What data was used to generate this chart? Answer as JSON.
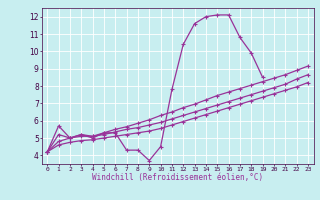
{
  "title": "",
  "xlabel": "Windchill (Refroidissement éolien,°C)",
  "ylabel": "",
  "bg_color": "#c8eef0",
  "grid_color": "#aadddd",
  "line_color": "#993399",
  "marker": "+",
  "xlim": [
    -0.5,
    23.5
  ],
  "ylim": [
    3.5,
    12.5
  ],
  "xticks": [
    0,
    1,
    2,
    3,
    4,
    5,
    6,
    7,
    8,
    9,
    10,
    11,
    12,
    13,
    14,
    15,
    16,
    17,
    18,
    19,
    20,
    21,
    22,
    23
  ],
  "yticks": [
    4,
    5,
    6,
    7,
    8,
    9,
    10,
    11,
    12
  ],
  "x_data": [
    0,
    1,
    2,
    3,
    4,
    5,
    6,
    7,
    8,
    9,
    10,
    11,
    12,
    13,
    14,
    15,
    16,
    17,
    18,
    19,
    20,
    21,
    22,
    23
  ],
  "line1_x": [
    0,
    1,
    2,
    3,
    4,
    5,
    6,
    7,
    8,
    9,
    10,
    11,
    12,
    13,
    14,
    15,
    16,
    17,
    18,
    19
  ],
  "line1_y": [
    4.2,
    5.7,
    5.0,
    5.2,
    5.0,
    5.3,
    5.3,
    4.3,
    4.3,
    3.7,
    4.5,
    7.8,
    10.4,
    11.6,
    12.0,
    12.1,
    12.1,
    10.8,
    9.9,
    8.5
  ],
  "line2_x": [
    0,
    1,
    2,
    3,
    4,
    5,
    6,
    7,
    8,
    9,
    10,
    11,
    12,
    13,
    14,
    15,
    16,
    17,
    18,
    19,
    20,
    21,
    22,
    23
  ],
  "line2_y": [
    4.2,
    5.2,
    5.0,
    5.2,
    5.1,
    5.3,
    5.5,
    5.65,
    5.85,
    6.05,
    6.3,
    6.5,
    6.75,
    6.95,
    7.2,
    7.45,
    7.65,
    7.85,
    8.05,
    8.25,
    8.45,
    8.65,
    8.9,
    9.15
  ],
  "line3_x": [
    0,
    1,
    2,
    3,
    4,
    5,
    6,
    7,
    8,
    9,
    10,
    11,
    12,
    13,
    14,
    15,
    16,
    17,
    18,
    19,
    20,
    21,
    22,
    23
  ],
  "line3_y": [
    4.2,
    4.8,
    5.0,
    5.1,
    5.1,
    5.2,
    5.35,
    5.5,
    5.6,
    5.75,
    5.9,
    6.1,
    6.3,
    6.5,
    6.7,
    6.9,
    7.1,
    7.3,
    7.5,
    7.7,
    7.9,
    8.1,
    8.4,
    8.65
  ],
  "line4_x": [
    0,
    1,
    2,
    3,
    4,
    5,
    6,
    7,
    8,
    9,
    10,
    11,
    12,
    13,
    14,
    15,
    16,
    17,
    18,
    19,
    20,
    21,
    22,
    23
  ],
  "line4_y": [
    4.2,
    4.6,
    4.75,
    4.85,
    4.9,
    5.0,
    5.1,
    5.2,
    5.3,
    5.4,
    5.55,
    5.75,
    5.95,
    6.15,
    6.35,
    6.55,
    6.75,
    6.95,
    7.15,
    7.35,
    7.55,
    7.75,
    7.95,
    8.2
  ]
}
